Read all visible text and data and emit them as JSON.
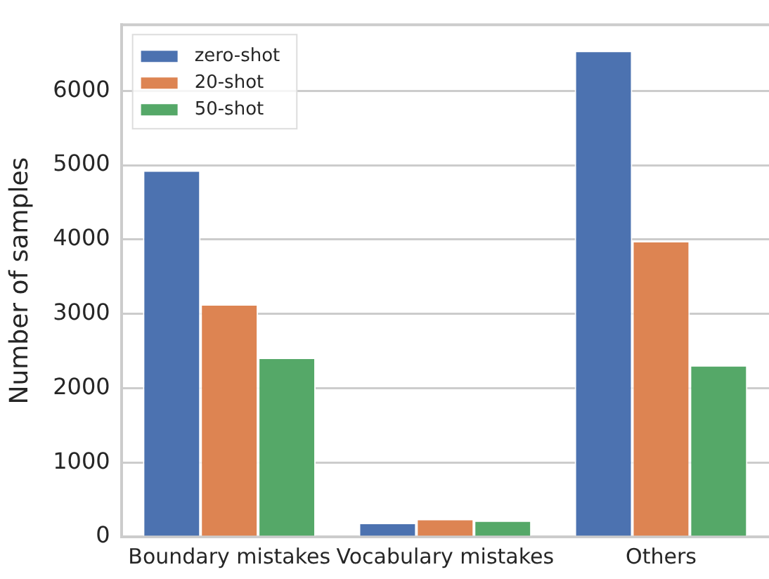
{
  "chart_data": {
    "type": "bar",
    "ylabel": "Number of samples",
    "categories": [
      "Boundary mistakes",
      "Vocabulary mistakes",
      "Others"
    ],
    "series": [
      {
        "name": "zero-shot",
        "color": "#4c72b0",
        "values": [
          4930,
          190,
          6540
        ]
      },
      {
        "name": "20-shot",
        "color": "#dd8452",
        "values": [
          3130,
          240,
          3980
        ]
      },
      {
        "name": "50-shot",
        "color": "#55a868",
        "values": [
          2410,
          220,
          2310
        ]
      }
    ],
    "ylim": [
      0,
      6890
    ],
    "yticks": [
      0,
      1000,
      2000,
      3000,
      4000,
      5000,
      6000
    ],
    "grid": "y",
    "legend": "top left"
  }
}
